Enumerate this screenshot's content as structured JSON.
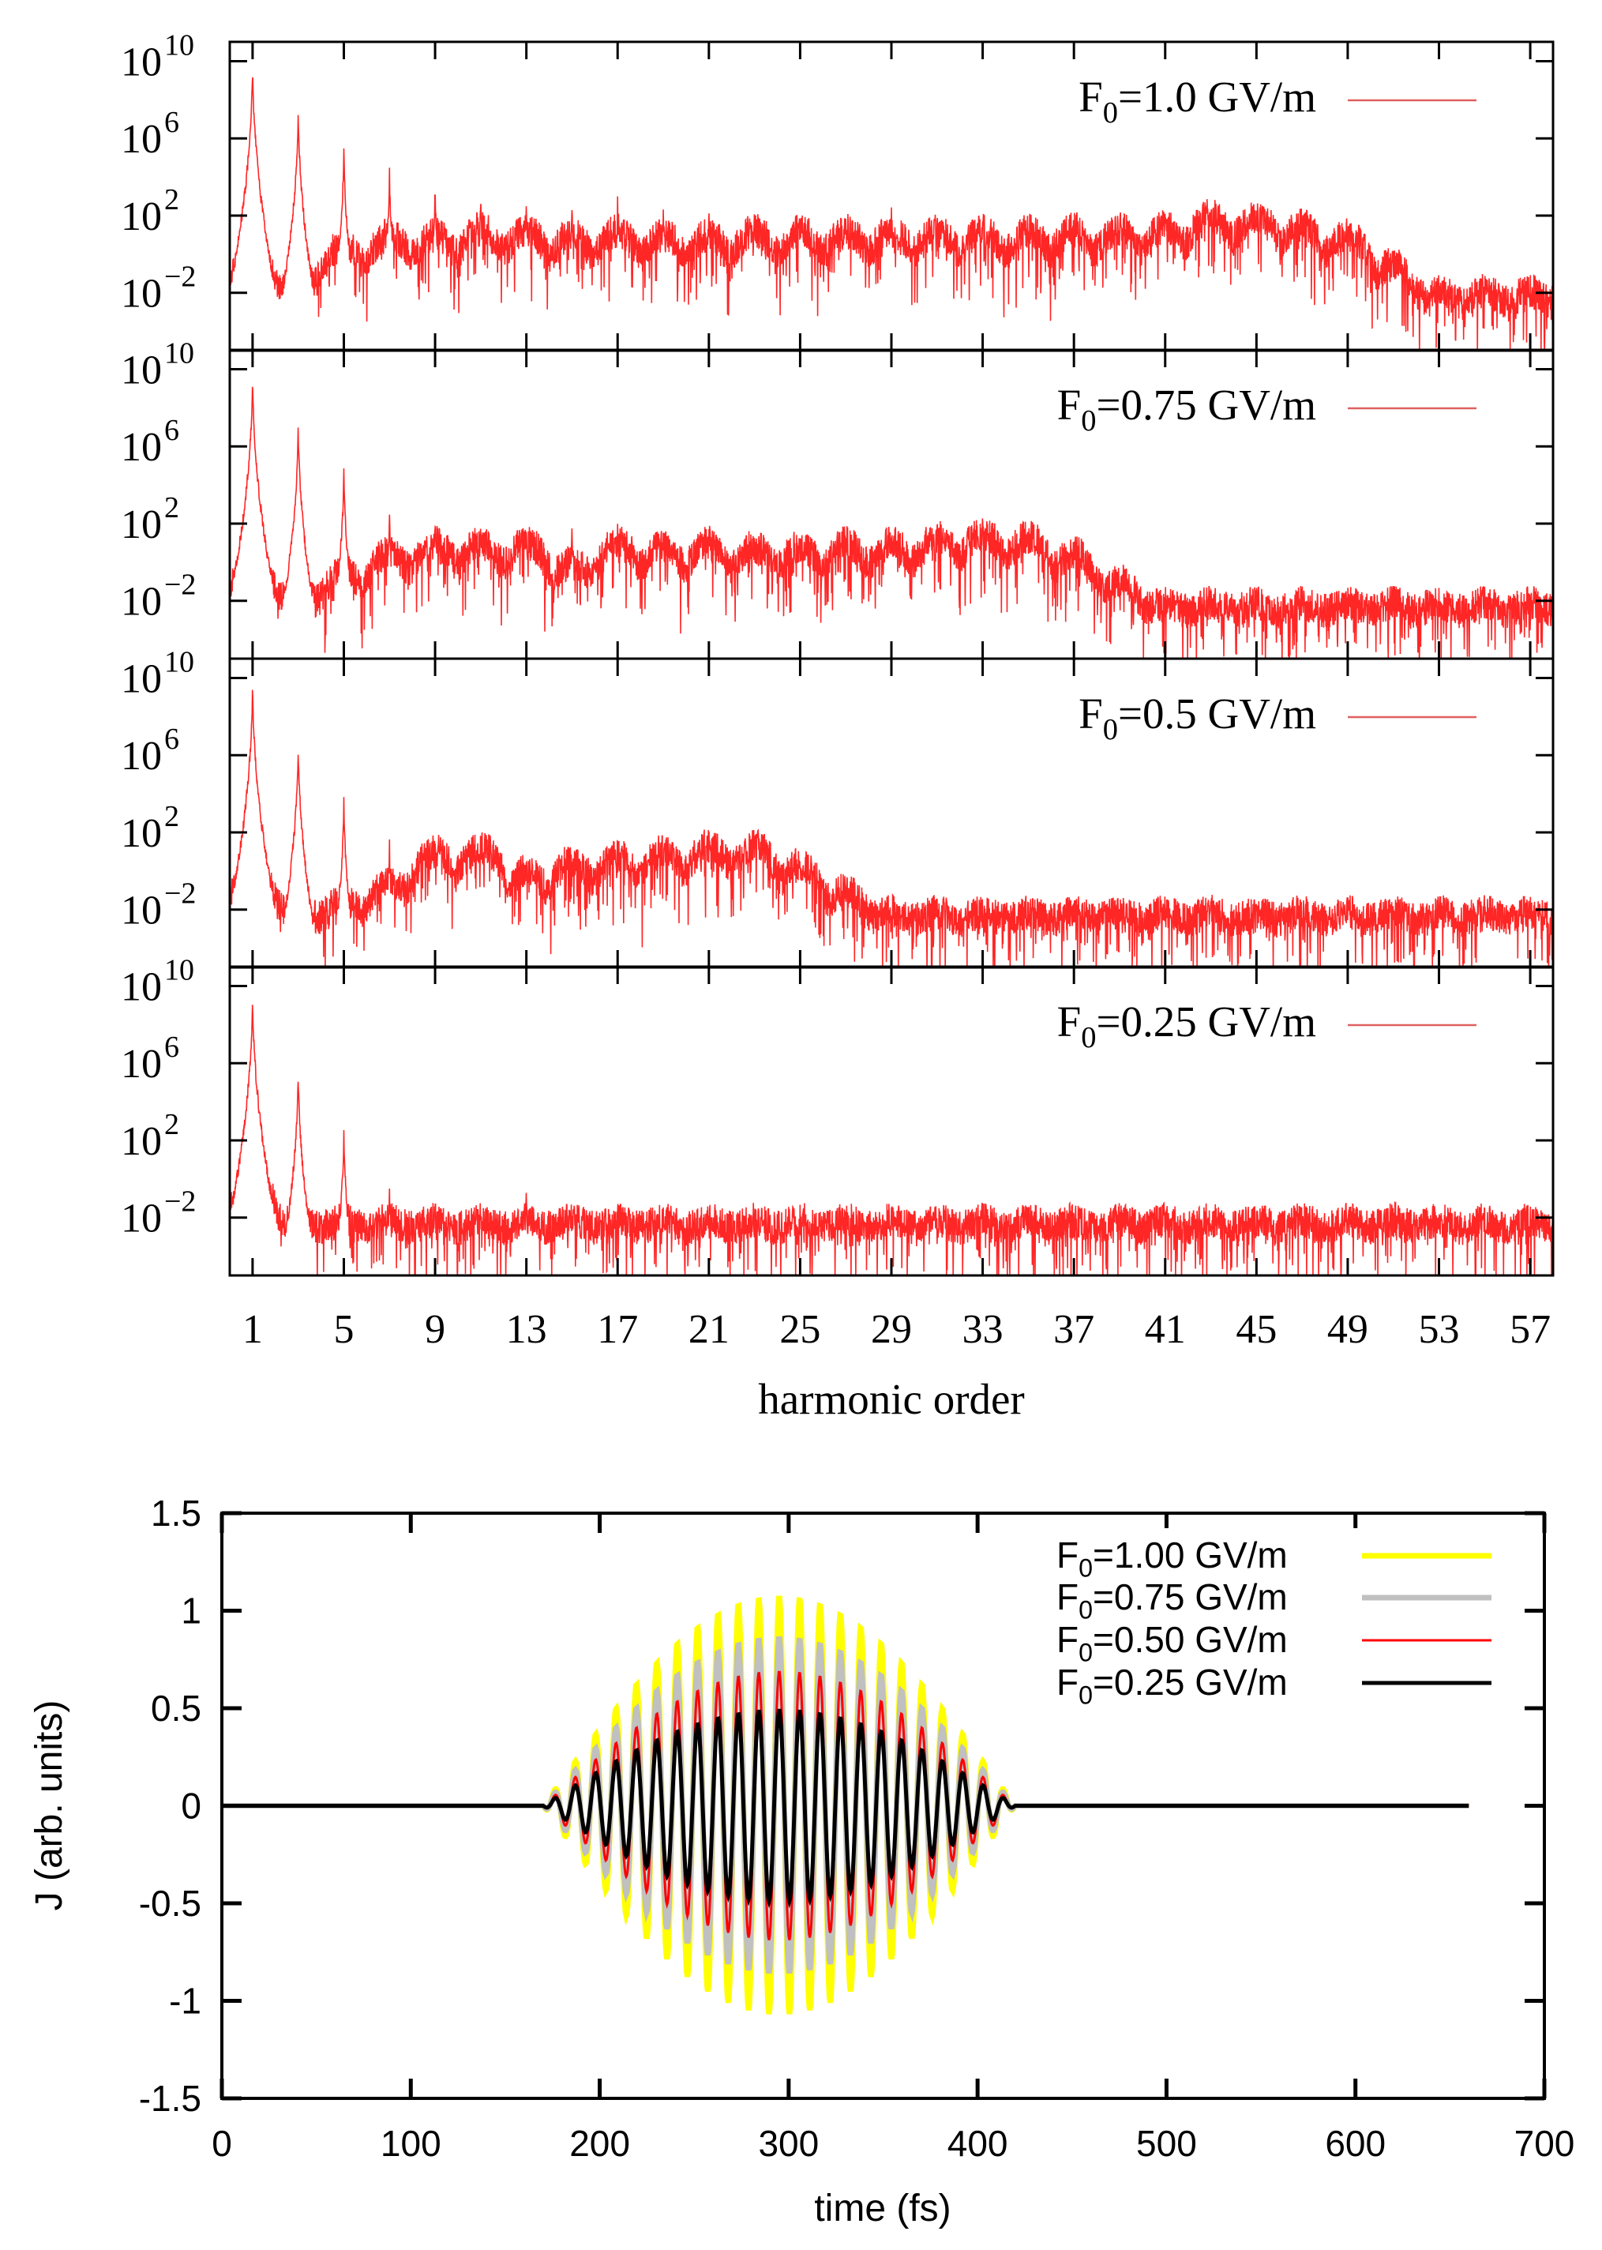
{
  "chart_data": [
    {
      "type": "line",
      "yscale": "log",
      "xlabel": "harmonic order",
      "xlim": [
        0,
        58
      ],
      "ylim_log10": [
        -5,
        11
      ],
      "xticks": [
        "1",
        "5",
        "9",
        "13",
        "17",
        "21",
        "25",
        "29",
        "33",
        "37",
        "41",
        "45",
        "49",
        "53",
        "57"
      ],
      "yticks": [
        {
          "base": "10",
          "exponent": "10",
          "log10": 10
        },
        {
          "base": "10",
          "exponent": "6",
          "log10": 6
        },
        {
          "base": "10",
          "exponent": "2",
          "log10": 2
        },
        {
          "base": "10",
          "exponent": "−2",
          "log10": -2
        }
      ],
      "line_color": "#ff0000",
      "legend_line_color": "#e06060",
      "legend_placement": "top-right",
      "panels": [
        {
          "legend": {
            "symbol": "F",
            "subscript": "0",
            "rest": "=1.0 GV/m"
          },
          "noise_floor_log10": -2.6,
          "sharp_peaks_log10": [
            [
              1,
              10.2
            ],
            [
              3,
              7.9
            ],
            [
              5,
              5.9
            ],
            [
              7,
              4.7
            ],
            [
              9,
              4.0
            ],
            [
              11,
              3.6
            ],
            [
              13,
              3.2
            ],
            [
              15,
              3.0
            ],
            [
              17,
              3.0
            ],
            [
              19,
              2.8
            ],
            [
              21,
              2.8
            ],
            [
              23,
              2.8
            ],
            [
              25,
              2.5
            ],
            [
              27,
              2.3
            ],
            [
              29,
              2.2
            ],
            [
              31,
              2.2
            ]
          ],
          "hump_log10_odd_orders": [
            0,
            -1,
            0.5,
            1,
            1,
            1.3,
            1.2,
            1,
            1.2,
            1,
            1,
            1.2,
            1.2,
            1.2,
            1.2,
            1.2,
            1.2,
            1.2,
            1.3,
            1.3,
            1.4,
            2,
            2,
            1.5,
            1,
            -0.5,
            -2,
            -2,
            -2
          ]
        },
        {
          "legend": {
            "symbol": "F",
            "subscript": "0",
            "rest": "=0.75 GV/m"
          },
          "noise_floor_log10": -2.6,
          "sharp_peaks_log10": [
            [
              1,
              10.0
            ],
            [
              3,
              7.5
            ],
            [
              5,
              5.2
            ],
            [
              7,
              3.2
            ],
            [
              9,
              2.8
            ],
            [
              11,
              2.5
            ],
            [
              13,
              2.5
            ],
            [
              15,
              2.5
            ],
            [
              17,
              2.5
            ],
            [
              19,
              2.2
            ],
            [
              21,
              2.2
            ]
          ],
          "hump_log10_odd_orders": [
            0,
            -1.5,
            -0.5,
            0.5,
            1,
            1,
            1,
            0,
            1,
            0.8,
            1,
            0.8,
            0.8,
            1,
            1,
            1.3,
            1.5,
            1.3,
            0.5,
            -1,
            -2.3,
            -2.3,
            -2.3,
            -2.3,
            -2.3,
            -2.3,
            -2.3,
            -2.3,
            -2.3
          ]
        },
        {
          "legend": {
            "symbol": "F",
            "subscript": "0",
            "rest": "=0.5 GV/m"
          },
          "noise_floor_log10": -2.6,
          "sharp_peaks_log10": [
            [
              1,
              10.0
            ],
            [
              3,
              7.0
            ],
            [
              5,
              4.0
            ],
            [
              7,
              1.8
            ],
            [
              9,
              1.6
            ],
            [
              13,
              1.0
            ],
            [
              15,
              1.0
            ]
          ],
          "hump_log10_odd_orders": [
            0,
            -2,
            -1.5,
            -0.5,
            1,
            1.2,
            0,
            0.5,
            0.8,
            1,
            1.3,
            1.3,
            0.3,
            -1,
            -2.3,
            -2.3,
            -2.3,
            -2.3,
            -2.3,
            -2.3,
            -2.3,
            -2.3,
            -2.3,
            -2.3,
            -2.3,
            -2.3,
            -2.3,
            -2.3,
            -2.3
          ]
        },
        {
          "legend": {
            "symbol": "F",
            "subscript": "0",
            "rest": "=0.25 GV/m"
          },
          "noise_floor_log10": -2.6,
          "sharp_peaks_log10": [
            [
              1,
              10.0
            ],
            [
              3,
              6.0
            ],
            [
              5,
              3.0
            ],
            [
              7,
              0.0
            ],
            [
              9,
              -0.5
            ],
            [
              11,
              -1.0
            ],
            [
              13,
              0.0
            ],
            [
              15,
              -1.0
            ]
          ],
          "hump_log10_odd_orders": [
            0,
            -2.3,
            -2.3,
            -2.3,
            -2.3,
            -2.3,
            -2.3,
            -2.3,
            -2.3,
            -2.3,
            -2.3,
            -2.3,
            -2.3,
            -2.3,
            -2.3,
            -2.3,
            -2.3,
            -2.3,
            -2.3,
            -2.3,
            -2.3,
            -2.3,
            -2.3,
            -2.3,
            -2.3,
            -2.3,
            -2.3,
            -2.3,
            -2.3
          ]
        }
      ]
    },
    {
      "type": "line",
      "xlabel": "time (fs)",
      "ylabel": "J (arb. units)",
      "xlim": [
        0,
        700
      ],
      "ylim": [
        -1.5,
        1.5
      ],
      "xticks": [
        "0",
        "100",
        "200",
        "300",
        "400",
        "500",
        "600",
        "700"
      ],
      "yticks": [
        "1.5",
        "1",
        "0.5",
        "0",
        "-0.5",
        "-1",
        "-1.5"
      ],
      "legend_placement": "top-right",
      "pulse": {
        "start_fs": 170,
        "end_fs": 420,
        "center_fs": 295,
        "period_fs": 10.8,
        "data_end_fs": 660
      },
      "series": [
        {
          "name": {
            "symbol": "F",
            "subscript": "0",
            "rest": "=1.00 GV/m"
          },
          "peak_amplitude": 1.07,
          "color": "#ffff00"
        },
        {
          "name": {
            "symbol": "F",
            "subscript": "0",
            "rest": "=0.75 GV/m"
          },
          "peak_amplitude": 0.86,
          "color": "#c0c0c0"
        },
        {
          "name": {
            "symbol": "F",
            "subscript": "0",
            "rest": "=0.50 GV/m"
          },
          "peak_amplitude": 0.69,
          "color": "#ff0000"
        },
        {
          "name": {
            "symbol": "F",
            "subscript": "0",
            "rest": "=0.25 GV/m"
          },
          "peak_amplitude": 0.49,
          "color": "#000000"
        }
      ]
    }
  ]
}
